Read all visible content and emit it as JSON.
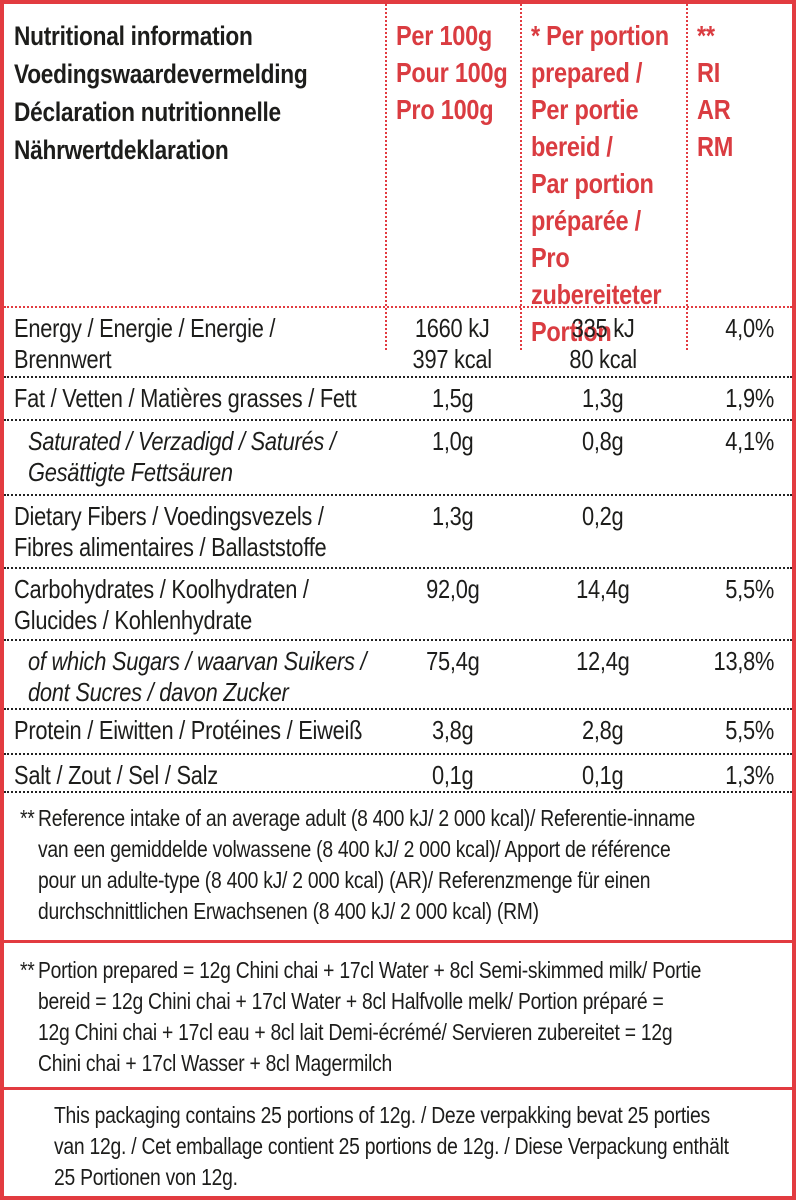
{
  "header": {
    "title": "Nutritional information\nVoedingswaardevermelding\nDéclaration nutritionnelle\nNährwertdeklaration",
    "col_per_100g": "Per 100g\nPour 100g\nPro 100g",
    "col_per_portion": "* Per portion\nprepared /\nPer portie\nbereid /\nPar portion\npréparée /\nPro\nzubereiteter\nPortion",
    "col_reference_intake": "**\nRI\nAR\nRM"
  },
  "rows": [
    {
      "label": "Energy / Energie / Energie /\nBrennwert",
      "per_100g": "1660 kJ\n397 kcal",
      "per_portion": "335 kJ\n80 kcal",
      "ri": "4,0%",
      "indent": false
    },
    {
      "label": "Fat / Vetten / Matières grasses / Fett",
      "per_100g": "1,5g",
      "per_portion": "1,3g",
      "ri": "1,9%",
      "indent": false
    },
    {
      "label": "Saturated / Verzadigd / Saturés /\nGesättigte Fettsäuren",
      "per_100g": "1,0g",
      "per_portion": "0,8g",
      "ri": "4,1%",
      "indent": true
    },
    {
      "label": "Dietary Fibers / Voedingsvezels /\nFibres alimentaires / Ballaststoffe",
      "per_100g": "1,3g",
      "per_portion": "0,2g",
      "ri": "",
      "indent": false
    },
    {
      "label": "Carbohydrates / Koolhydraten /\nGlucides / Kohlenhydrate",
      "per_100g": "92,0g",
      "per_portion": "14,4g",
      "ri": "5,5%",
      "indent": false
    },
    {
      "label": "of which Sugars / waarvan Suikers /\ndont Sucres / davon Zucker",
      "per_100g": "75,4g",
      "per_portion": "12,4g",
      "ri": "13,8%",
      "indent": true
    },
    {
      "label": "Protein / Eiwitten / Protéines / Eiweiß",
      "per_100g": "3,8g",
      "per_portion": "2,8g",
      "ri": "5,5%",
      "indent": false
    },
    {
      "label": "Salt / Zout / Sel / Salz",
      "per_100g": "0,1g",
      "per_portion": "0,1g",
      "ri": "1,3%",
      "indent": false
    }
  ],
  "footnotes": [
    {
      "marker": "**",
      "text": "Reference intake of an average adult (8 400 kJ/ 2 000 kcal)/ Referentie-inname\nvan een gemiddelde volwassene (8 400 kJ/ 2 000 kcal)/ Apport de référence\npour un adulte-type (8 400 kJ/ 2 000 kcal) (AR)/ Referenzmenge für einen\ndurchschnittlichen Erwachsenen (8 400 kJ/ 2 000 kcal) (RM)"
    },
    {
      "marker": "**",
      "text": "Portion prepared = 12g Chini chai + 17cl Water + 8cl Semi-skimmed milk/ Portie\nbereid = 12g Chini chai + 17cl Water + 8cl Halfvolle melk/ Portion préparé =\n12g Chini chai + 17cl eau + 8cl lait Demi-écrémé/ Servieren zubereitet = 12g\nChini chai + 17cl Wasser + 8cl Magermilch"
    }
  ],
  "packaging_note": "This packaging contains 25 portions of 12g. / Deze verpakking bevat 25 porties\nvan 12g. / Cet emballage contient 25 portions de 12g. / Diese Verpackung enthält\n25 Portionen von 12g.",
  "colors": {
    "accent_red": "#e23b40",
    "text_black": "#1d1d1b"
  }
}
